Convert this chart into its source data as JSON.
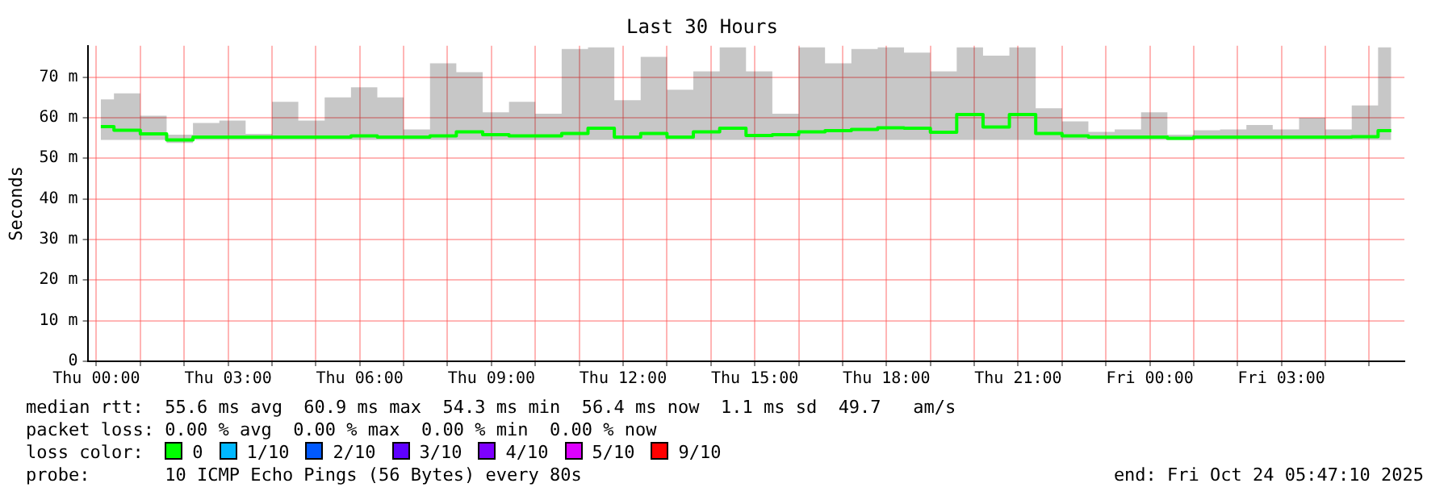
{
  "chart_data": {
    "type": "step",
    "title": "Last 30 Hours",
    "ylabel": "Seconds",
    "legend_title": "loss color:",
    "legend": "bottom",
    "grid": true,
    "line_style": "solid",
    "marker": "none",
    "x": [
      "2025-10-23T00:06",
      "2025-10-23T00:42",
      "2025-10-23T01:18",
      "2025-10-23T01:54",
      "2025-10-23T02:30",
      "2025-10-23T03:06",
      "2025-10-23T03:42",
      "2025-10-23T04:18",
      "2025-10-23T04:54",
      "2025-10-23T05:30",
      "2025-10-23T06:06",
      "2025-10-23T06:42",
      "2025-10-23T07:18",
      "2025-10-23T07:54",
      "2025-10-23T08:30",
      "2025-10-23T09:06",
      "2025-10-23T09:42",
      "2025-10-23T10:18",
      "2025-10-23T10:54",
      "2025-10-23T11:30",
      "2025-10-23T12:06",
      "2025-10-23T12:42",
      "2025-10-23T13:18",
      "2025-10-23T13:54",
      "2025-10-23T14:30",
      "2025-10-23T15:06",
      "2025-10-23T15:42",
      "2025-10-23T16:18",
      "2025-10-23T16:54",
      "2025-10-23T17:30",
      "2025-10-23T18:06",
      "2025-10-23T18:42",
      "2025-10-23T19:18",
      "2025-10-23T19:54",
      "2025-10-23T20:30",
      "2025-10-23T21:06",
      "2025-10-23T21:42",
      "2025-10-23T22:18",
      "2025-10-23T22:54",
      "2025-10-23T23:30",
      "2025-10-24T00:06",
      "2025-10-24T00:42",
      "2025-10-24T01:18",
      "2025-10-24T01:54",
      "2025-10-24T02:30",
      "2025-10-24T03:06",
      "2025-10-24T03:42",
      "2025-10-24T04:18",
      "2025-10-24T04:54",
      "2025-10-24T05:30"
    ],
    "xlim": [
      "2025-10-22T23:48",
      "2025-10-24T05:48"
    ],
    "xticks": [
      {
        "value": "2025-10-23T00:00",
        "label": "Thu 00:00"
      },
      {
        "value": "2025-10-23T01:00",
        "label": null
      },
      {
        "value": "2025-10-23T02:00",
        "label": null
      },
      {
        "value": "2025-10-23T03:00",
        "label": "Thu 03:00"
      },
      {
        "value": "2025-10-23T04:00",
        "label": null
      },
      {
        "value": "2025-10-23T05:00",
        "label": null
      },
      {
        "value": "2025-10-23T06:00",
        "label": "Thu 06:00"
      },
      {
        "value": "2025-10-23T07:00",
        "label": null
      },
      {
        "value": "2025-10-23T08:00",
        "label": null
      },
      {
        "value": "2025-10-23T09:00",
        "label": "Thu 09:00"
      },
      {
        "value": "2025-10-23T10:00",
        "label": null
      },
      {
        "value": "2025-10-23T11:00",
        "label": null
      },
      {
        "value": "2025-10-23T12:00",
        "label": "Thu 12:00"
      },
      {
        "value": "2025-10-23T13:00",
        "label": null
      },
      {
        "value": "2025-10-23T14:00",
        "label": null
      },
      {
        "value": "2025-10-23T15:00",
        "label": "Thu 15:00"
      },
      {
        "value": "2025-10-23T16:00",
        "label": null
      },
      {
        "value": "2025-10-23T17:00",
        "label": null
      },
      {
        "value": "2025-10-23T18:00",
        "label": "Thu 18:00"
      },
      {
        "value": "2025-10-23T19:00",
        "label": null
      },
      {
        "value": "2025-10-23T20:00",
        "label": null
      },
      {
        "value": "2025-10-23T21:00",
        "label": "Thu 21:00"
      },
      {
        "value": "2025-10-23T22:00",
        "label": null
      },
      {
        "value": "2025-10-23T23:00",
        "label": null
      },
      {
        "value": "2025-10-24T00:00",
        "label": "Fri 00:00"
      },
      {
        "value": "2025-10-24T01:00",
        "label": null
      },
      {
        "value": "2025-10-24T02:00",
        "label": null
      },
      {
        "value": "2025-10-24T03:00",
        "label": "Fri 03:00"
      },
      {
        "value": "2025-10-24T04:00",
        "label": null
      },
      {
        "value": "2025-10-24T05:00",
        "label": null
      }
    ],
    "ylim": [
      0,
      77.7
    ],
    "yticks": [
      0,
      {
        "value": 10,
        "label": "10 m"
      },
      {
        "value": 20,
        "label": "20 m"
      },
      {
        "value": 30,
        "label": "30 m"
      },
      {
        "value": 40,
        "label": "40 m"
      },
      {
        "value": 50,
        "label": "50 m"
      },
      {
        "value": 60,
        "label": "60 m"
      },
      {
        "value": 70,
        "label": "70 m"
      }
    ],
    "series": [
      {
        "name": "0",
        "color": "#00ff00",
        "values": [
          57.8,
          56.9,
          56,
          54.5,
          55.2,
          55.2,
          55.2,
          55.2,
          55.2,
          55.2,
          55.5,
          55.2,
          55.2,
          55.5,
          56.5,
          55.8,
          55.5,
          55.5,
          56.1,
          57.4,
          55.2,
          56.1,
          55.2,
          56.5,
          57.4,
          55.6,
          55.8,
          56.5,
          56.8,
          57.1,
          57.5,
          57.4,
          56.4,
          60.8,
          57.7,
          60.8,
          56.1,
          55.5,
          55.2,
          55.2,
          55.2,
          54.9,
          55.2,
          55.2,
          55.2,
          55.2,
          55.2,
          55.2,
          55.3,
          56.8
        ],
        "lower": [
          54.5,
          54.5,
          54.5,
          53.8,
          54.5,
          54.5,
          54.5,
          54.5,
          54.5,
          54.5,
          54.5,
          54.5,
          54.5,
          54.5,
          54.5,
          54.5,
          54.5,
          54.5,
          54.5,
          54.5,
          54.5,
          54.5,
          54.5,
          54.5,
          54.5,
          54.5,
          54.5,
          54.5,
          54.5,
          54.5,
          54.5,
          54.5,
          54.5,
          54.5,
          54.5,
          54.5,
          54.5,
          54.5,
          54.5,
          54.5,
          54.5,
          54.5,
          54.5,
          54.5,
          54.5,
          54.5,
          54.5,
          54.5,
          54.5,
          54.5
        ],
        "upper": [
          64.5,
          66,
          60.5,
          55.8,
          58.7,
          59.3,
          56,
          63.9,
          59.3,
          65,
          67.5,
          65,
          57.1,
          73.4,
          71.2,
          61.3,
          63.9,
          61,
          76.9,
          77.3,
          64.3,
          75,
          66.9,
          71.4,
          77.3,
          71.4,
          61,
          77.3,
          73.4,
          76.9,
          77.3,
          76,
          71.4,
          77.3,
          75.3,
          77.3,
          62.3,
          59.1,
          56.5,
          57.1,
          61.3,
          55.8,
          56.9,
          57.1,
          58.2,
          57.1,
          60,
          57.1,
          63,
          77.3
        ]
      },
      {
        "name": "1/10",
        "color": "#00b8ff",
        "values": [
          null,
          null,
          null,
          null,
          null,
          null,
          null,
          null,
          null,
          null,
          null,
          null,
          null,
          null,
          null,
          null,
          null,
          null,
          null,
          null,
          null,
          null,
          null,
          null,
          null,
          null,
          null,
          null,
          null,
          null,
          null,
          null,
          null,
          null,
          null,
          null,
          null,
          null,
          null,
          null,
          null,
          null,
          null,
          null,
          null,
          null,
          null,
          null,
          null,
          null
        ]
      },
      {
        "name": "2/10",
        "color": "#0059ff",
        "values": [
          null,
          null,
          null,
          null,
          null,
          null,
          null,
          null,
          null,
          null,
          null,
          null,
          null,
          null,
          null,
          null,
          null,
          null,
          null,
          null,
          null,
          null,
          null,
          null,
          null,
          null,
          null,
          null,
          null,
          null,
          null,
          null,
          null,
          null,
          null,
          null,
          null,
          null,
          null,
          null,
          null,
          null,
          null,
          null,
          null,
          null,
          null,
          null,
          null,
          null
        ]
      },
      {
        "name": "3/10",
        "color": "#5e00ff",
        "values": [
          null,
          null,
          null,
          null,
          null,
          null,
          null,
          null,
          null,
          null,
          null,
          null,
          null,
          null,
          null,
          null,
          null,
          null,
          null,
          null,
          null,
          null,
          null,
          null,
          null,
          null,
          null,
          null,
          null,
          null,
          null,
          null,
          null,
          null,
          null,
          null,
          null,
          null,
          null,
          null,
          null,
          null,
          null,
          null,
          null,
          null,
          null,
          null,
          null,
          null
        ]
      },
      {
        "name": "4/10",
        "color": "#7e00ff",
        "values": [
          null,
          null,
          null,
          null,
          null,
          null,
          null,
          null,
          null,
          null,
          null,
          null,
          null,
          null,
          null,
          null,
          null,
          null,
          null,
          null,
          null,
          null,
          null,
          null,
          null,
          null,
          null,
          null,
          null,
          null,
          null,
          null,
          null,
          null,
          null,
          null,
          null,
          null,
          null,
          null,
          null,
          null,
          null,
          null,
          null,
          null,
          null,
          null,
          null,
          null
        ]
      },
      {
        "name": "5/10",
        "color": "#dd00ff",
        "values": [
          null,
          null,
          null,
          null,
          null,
          null,
          null,
          null,
          null,
          null,
          null,
          null,
          null,
          null,
          null,
          null,
          null,
          null,
          null,
          null,
          null,
          null,
          null,
          null,
          null,
          null,
          null,
          null,
          null,
          null,
          null,
          null,
          null,
          null,
          null,
          null,
          null,
          null,
          null,
          null,
          null,
          null,
          null,
          null,
          null,
          null,
          null,
          null,
          null,
          null
        ]
      },
      {
        "name": "9/10",
        "color": "#ff0000",
        "values": [
          null,
          null,
          null,
          null,
          null,
          null,
          null,
          null,
          null,
          null,
          null,
          null,
          null,
          null,
          null,
          null,
          null,
          null,
          null,
          null,
          null,
          null,
          null,
          null,
          null,
          null,
          null,
          null,
          null,
          null,
          null,
          null,
          null,
          null,
          null,
          null,
          null,
          null,
          null,
          null,
          null,
          null,
          null,
          null,
          null,
          null,
          null,
          null,
          null,
          null
        ]
      }
    ],
    "annotations": [
      "median rtt:  55.6 ms avg  60.9 ms max  54.3 ms min  56.4 ms now  1.1 ms sd  49.7   am/s",
      "packet loss: 0.00 % avg  0.00 % max  0.00 % min  0.00 % now",
      "probe:       10 ICMP Echo Pings (56 Bytes) every 80s",
      "end: Fri Oct 24 05:47:10 2025"
    ]
  }
}
